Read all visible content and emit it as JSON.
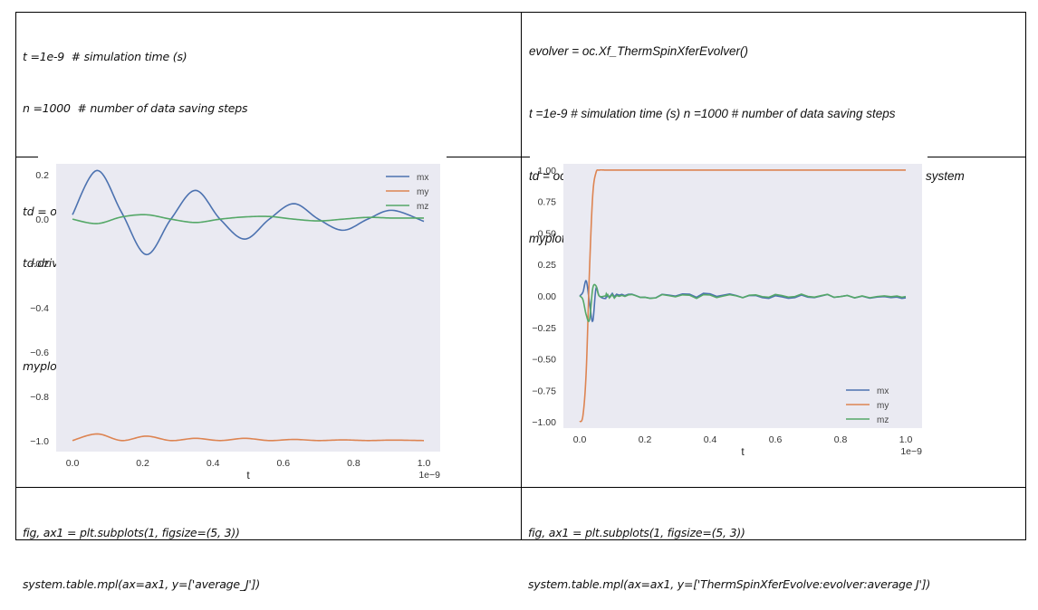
{
  "cells": {
    "left_top": {
      "lines": [
        "t =1e-9  # simulation time (s)",
        "n =1000  # number of data saving steps",
        "",
        "td = oc.TimeDriver()",
        "td.drive(system, t=t, n=n)  # drive the system",
        "",
        "myplot = system.table.data.plot('t', ['mx','my','mz'])"
      ]
    },
    "right_top": {
      "line1": "evolver = oc.Xf_ThermSpinXferEvolver()",
      "line2": "t =1e-9 # simulation time (s) n =1000 # number of data saving steps",
      "line3": "td = oc.TimeDriver(evolver=evolver) td.drive(system, t=t, n=n) # drive the system",
      "line4": "myplot = system.table.data.plot('t', ['mx','my','mz'])"
    },
    "left_bottom": {
      "line1": "fig, ax1 = plt.subplots(1, figsize=(5, 3))",
      "line2": "system.table.mpl(ax=ax1, y=['average_J'])"
    },
    "right_bottom": {
      "line1": "fig, ax1 = plt.subplots(1, figsize=(5, 3))",
      "line2": "system.table.mpl(ax=ax1, y=['ThermSpinXferEvolve:evolver:average J'])"
    }
  },
  "colors": {
    "mx": "#4c72b0",
    "my": "#dd8452",
    "mz": "#55a868",
    "axes_bg": "#eaeaf2"
  },
  "chart_data": [
    {
      "type": "line",
      "title": "",
      "xlabel": "t",
      "ylabel": "",
      "x_offset_label": "1e-9",
      "xlim": [
        0.0,
        1.0
      ],
      "ylim": [
        -1.05,
        0.25
      ],
      "x_ticks": [
        "0.0",
        "0.2",
        "0.4",
        "0.6",
        "0.8",
        "1.0"
      ],
      "y_ticks": [
        "0.2",
        "0.0",
        "-0.2",
        "-0.4",
        "-0.6",
        "-0.8",
        "-1.0"
      ],
      "grid": false,
      "legend_position": "upper right",
      "legend": [
        "mx",
        "my",
        "mz"
      ],
      "x": [
        0.0,
        0.07,
        0.14,
        0.21,
        0.28,
        0.35,
        0.42,
        0.49,
        0.56,
        0.63,
        0.7,
        0.77,
        0.84,
        0.91,
        1.0
      ],
      "series": [
        {
          "name": "mx",
          "values": [
            0.02,
            0.22,
            0.03,
            -0.16,
            0.0,
            0.13,
            0.0,
            -0.09,
            0.0,
            0.07,
            0.0,
            -0.05,
            0.0,
            0.04,
            -0.01
          ]
        },
        {
          "name": "my",
          "values": [
            -1.0,
            -0.97,
            -1.0,
            -0.98,
            -1.0,
            -0.99,
            -1.0,
            -0.99,
            -1.0,
            -0.995,
            -1.0,
            -0.997,
            -1.0,
            -0.998,
            -1.0
          ]
        },
        {
          "name": "mz",
          "values": [
            0.0,
            -0.02,
            0.01,
            0.02,
            0.0,
            -0.015,
            0.0,
            0.01,
            0.012,
            0.0,
            -0.008,
            0.0,
            0.008,
            0.005,
            0.005
          ]
        }
      ]
    },
    {
      "type": "line",
      "title": "",
      "xlabel": "t",
      "ylabel": "",
      "x_offset_label": "1e-9",
      "xlim": [
        0.0,
        1.0
      ],
      "ylim": [
        -1.05,
        1.05
      ],
      "x_ticks": [
        "0.0",
        "0.2",
        "0.4",
        "0.6",
        "0.8",
        "1.0"
      ],
      "y_ticks": [
        "1.00",
        "0.75",
        "0.50",
        "0.25",
        "0.00",
        "-0.25",
        "-0.50",
        "-0.75",
        "-1.00"
      ],
      "grid": false,
      "legend_position": "lower right",
      "legend": [
        "mx",
        "my",
        "mz"
      ],
      "x": [
        0.0,
        0.01,
        0.02,
        0.03,
        0.04,
        0.05,
        0.06,
        0.08,
        0.1,
        0.2,
        0.4,
        0.6,
        0.8,
        1.0
      ],
      "series": [
        {
          "name": "mx",
          "values": [
            0.0,
            0.03,
            0.12,
            -0.05,
            -0.2,
            0.06,
            0.0,
            -0.02,
            0.01,
            0.0,
            0.01,
            -0.01,
            0.0,
            -0.01
          ]
        },
        {
          "name": "my",
          "values": [
            -1.0,
            -0.95,
            -0.6,
            0.2,
            0.8,
            0.98,
            1.0,
            1.0,
            1.0,
            1.0,
            1.0,
            1.0,
            1.0,
            1.0
          ]
        },
        {
          "name": "mz",
          "values": [
            0.0,
            -0.03,
            -0.15,
            -0.19,
            0.06,
            0.08,
            0.0,
            0.0,
            0.0,
            0.0,
            0.0,
            0.0,
            0.0,
            0.0
          ]
        }
      ]
    }
  ]
}
